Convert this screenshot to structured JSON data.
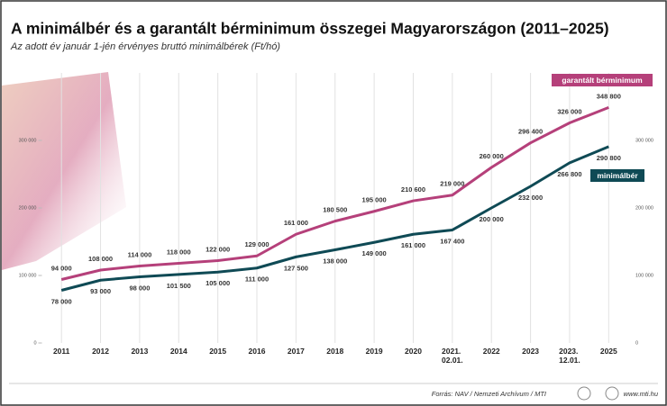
{
  "chart_data": {
    "type": "line",
    "title": "A minimálbér és a garantált bérminimum összegei Magyarországon (2011–2025)",
    "subtitle": "Az adott év január 1-jén érvényes bruttó minimálbérek (Ft/hó)",
    "categories": [
      "2011",
      "2012",
      "2013",
      "2014",
      "2015",
      "2016",
      "2017",
      "2018",
      "2019",
      "2020",
      "2021. 02.01.",
      "2022",
      "2023",
      "2023. 12.01.",
      "2025"
    ],
    "series": [
      {
        "name": "garantált bérminimum",
        "color": "#b5407a",
        "values": [
          94000,
          108000,
          114000,
          118000,
          122000,
          129000,
          161000,
          180500,
          195000,
          210600,
          219000,
          260000,
          296400,
          326000,
          348800
        ],
        "value_labels": [
          "94 000",
          "108 000",
          "114 000",
          "118 000",
          "122 000",
          "129 000",
          "161 000",
          "180 500",
          "195 000",
          "210 600",
          "219 000",
          "260 000",
          "296 400",
          "326 000",
          "348 800"
        ]
      },
      {
        "name": "minimálbér",
        "color": "#0f4a55",
        "values": [
          78000,
          93000,
          98000,
          101500,
          105000,
          111000,
          127500,
          138000,
          149000,
          161000,
          167400,
          200000,
          232000,
          266800,
          290800
        ],
        "value_labels": [
          "78 000",
          "93 000",
          "98 000",
          "101 500",
          "105 000",
          "111 000",
          "127 500",
          "138 000",
          "149 000",
          "161 000",
          "167 400",
          "200 000",
          "232 000",
          "266 800",
          "290 800"
        ]
      }
    ],
    "ylim": [
      0,
      400000
    ],
    "yticks": [
      0,
      {
        "value": 100000,
        "label": "100 000"
      },
      {
        "value": 200000,
        "label": "200 000"
      },
      {
        "value": 300000,
        "label": "300 000"
      }
    ],
    "grid": true
  },
  "footer": {
    "source": "Forrás: NAV / Nemzeti Archívum / MTI",
    "website": "www.mti.hu"
  }
}
